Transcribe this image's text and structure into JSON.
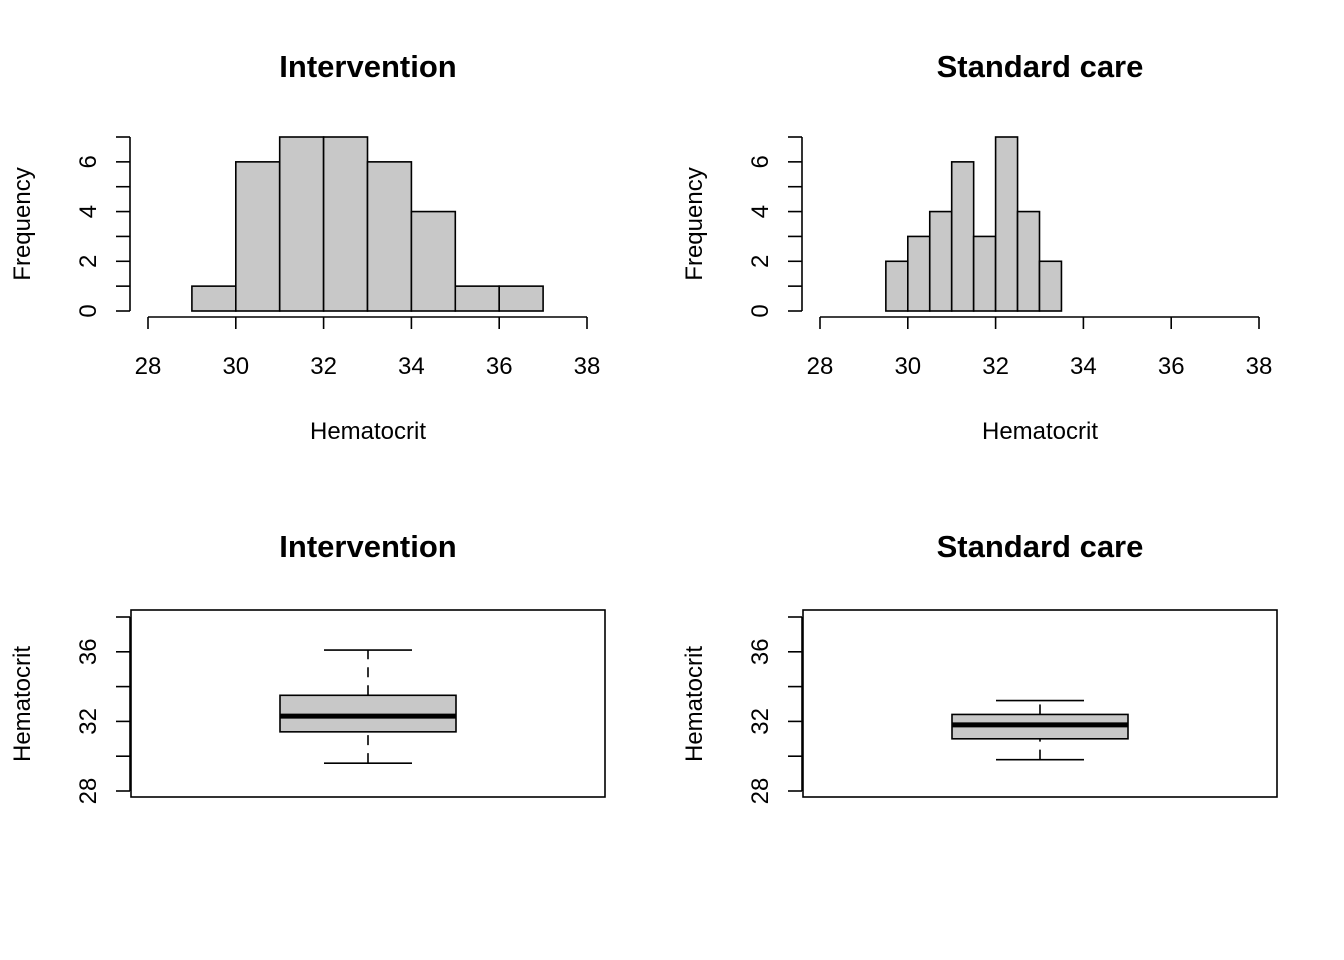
{
  "colors": {
    "bar_fill": "#C8C8C8",
    "stroke": "#000000",
    "background": "#FFFFFF"
  },
  "chart_data": [
    {
      "type": "bar",
      "subtype": "histogram",
      "title": "Intervention",
      "xlabel": "Hematocrit",
      "ylabel": "Frequency",
      "xlim": [
        28,
        38
      ],
      "ylim": [
        0,
        7
      ],
      "x_ticks": [
        28,
        30,
        32,
        34,
        36,
        38
      ],
      "y_ticks": [
        0,
        2,
        4,
        6
      ],
      "bins": [
        [
          29,
          30
        ],
        [
          30,
          31
        ],
        [
          31,
          32
        ],
        [
          32,
          33
        ],
        [
          33,
          34
        ],
        [
          34,
          35
        ],
        [
          35,
          36
        ],
        [
          36,
          37
        ]
      ],
      "values": [
        1,
        6,
        7,
        7,
        6,
        4,
        1,
        1
      ]
    },
    {
      "type": "bar",
      "subtype": "histogram",
      "title": "Standard care",
      "xlabel": "Hematocrit",
      "ylabel": "Frequency",
      "xlim": [
        28,
        38
      ],
      "ylim": [
        0,
        7
      ],
      "x_ticks": [
        28,
        30,
        32,
        34,
        36,
        38
      ],
      "y_ticks": [
        0,
        2,
        4,
        6
      ],
      "bins": [
        [
          29.5,
          30
        ],
        [
          30,
          30.5
        ],
        [
          30.5,
          31
        ],
        [
          31,
          31.5
        ],
        [
          31.5,
          32
        ],
        [
          32,
          32.5
        ],
        [
          32.5,
          33
        ],
        [
          33,
          33.5
        ]
      ],
      "values": [
        2,
        3,
        4,
        6,
        3,
        7,
        4,
        2
      ]
    },
    {
      "type": "boxplot",
      "title": "Intervention",
      "ylabel": "Hematocrit",
      "ylim": [
        28,
        38
      ],
      "y_ticks": [
        28,
        32,
        36
      ],
      "whisker_low": 29.6,
      "q1": 31.4,
      "median": 32.3,
      "q3": 33.5,
      "whisker_high": 36.1
    },
    {
      "type": "boxplot",
      "title": "Standard care",
      "ylabel": "Hematocrit",
      "ylim": [
        28,
        38
      ],
      "y_ticks": [
        28,
        32,
        36
      ],
      "whisker_low": 29.8,
      "q1": 31.0,
      "median": 31.8,
      "q3": 32.4,
      "whisker_high": 33.2
    }
  ]
}
